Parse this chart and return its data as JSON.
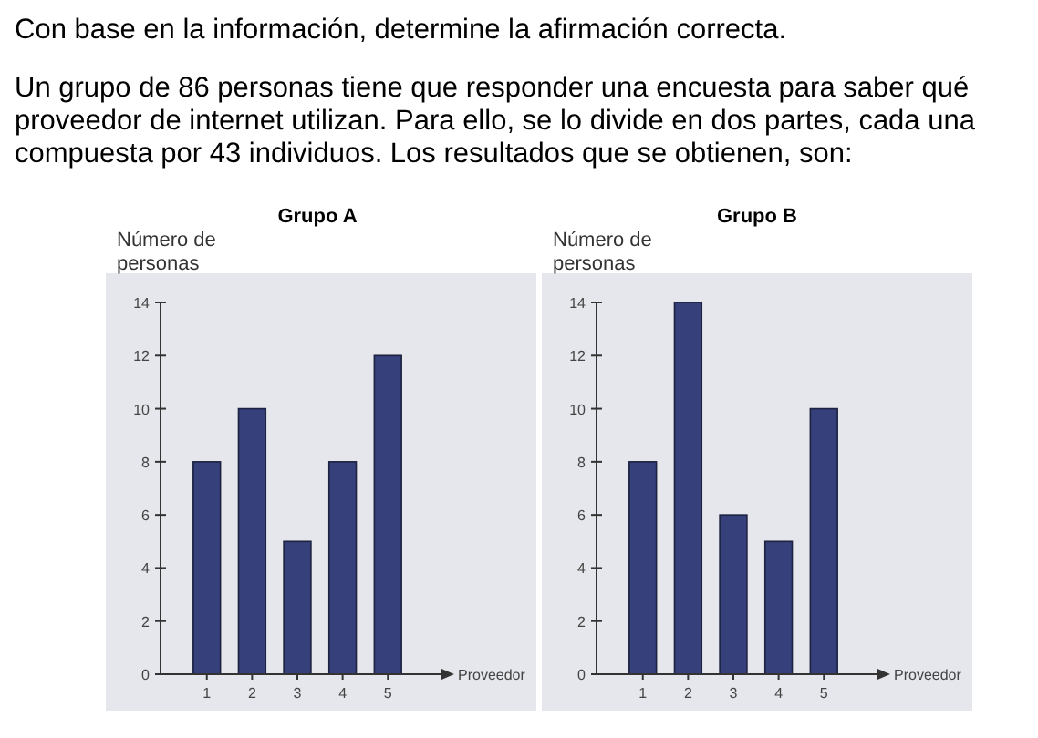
{
  "chart_data": [
    {
      "type": "bar",
      "title": "Grupo A",
      "ylabel": "Número de personas",
      "xlabel": "Proveedor",
      "annotations": [
        "Con base en la información, determine la afirmación correcta.",
        "Un grupo de 86 personas tiene que responder una encuesta para saber qué proveedor de internet utilizan. Para ello, se lo divide en dos partes, cada una compuesta por 43 individuos. Los resultados que se obtienen, son:"
      ],
      "categories": [
        "1",
        "2",
        "3",
        "4",
        "5"
      ],
      "values": [
        8,
        10,
        5,
        8,
        12
      ],
      "color": "#36407a",
      "ylim": [
        0,
        14
      ],
      "yticks": [
        0,
        2,
        4,
        6,
        8,
        10,
        12,
        14
      ]
    },
    {
      "type": "bar",
      "title": "Grupo B",
      "ylabel": "Número de personas",
      "xlabel": "Proveedor",
      "categories": [
        "1",
        "2",
        "3",
        "4",
        "5"
      ],
      "values": [
        8,
        14,
        6,
        5,
        10
      ],
      "color": "#36407a",
      "ylim": [
        0,
        14
      ],
      "yticks": [
        0,
        2,
        4,
        6,
        8,
        10,
        12,
        14
      ]
    }
  ]
}
